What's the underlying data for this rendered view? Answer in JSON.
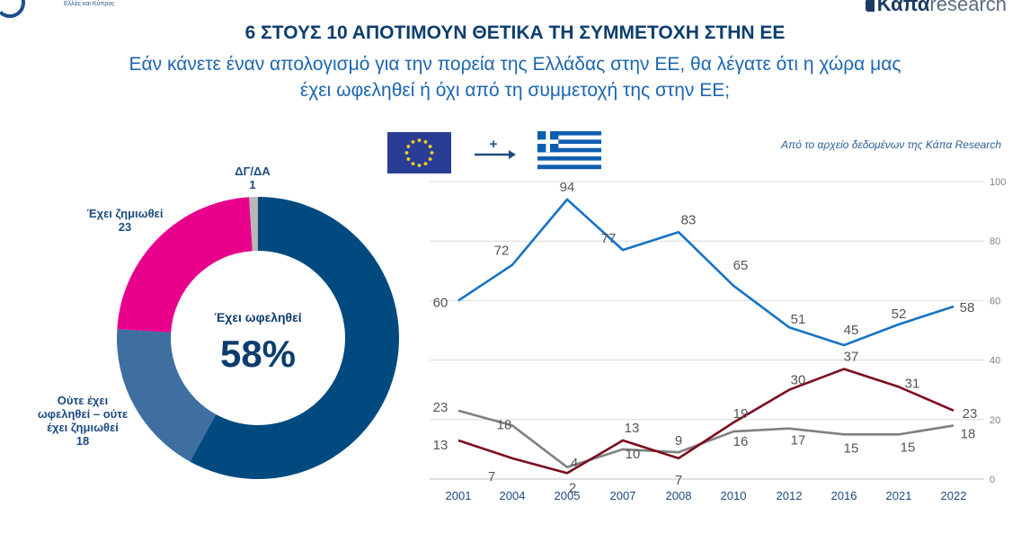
{
  "header": {
    "logo_left_tagline": "Ελλάς και Κύπρος",
    "logo_right_bold": "Κάπα",
    "logo_right_light": "research"
  },
  "title": "6 ΣΤΟΥΣ 10 ΑΠΟΤΙΜΟΥΝ ΘΕΤΙΚΑ ΤΗ ΣΥΜΜΕΤΟΧΗ ΣΤΗΝ ΕΕ",
  "subtitle_line1": "Εάν κάνετε έναν απολογισμό για την πορεία της Ελλάδας στην ΕΕ, θα λέγατε ότι η χώρα μας",
  "subtitle_line2": "έχει ωφεληθεί ή όχι από τη συμμετοχή της στην ΕΕ;",
  "source_note": "Από το αρχείο δεδομένων της Κάπα Research",
  "flags": {
    "plus_sign": "+"
  },
  "chart_data": [
    {
      "type": "pie",
      "center_label": "Έχει ωφεληθεί",
      "center_value": "58%",
      "slices": [
        {
          "label_lines": [
            "Έχει ωφεληθεί"
          ],
          "value": 58,
          "color": "#004a80",
          "show_label": false
        },
        {
          "label_lines": [
            "Ούτε έχει",
            "ωφεληθεί – ούτε",
            "έχει ζημιωθεί",
            "18"
          ],
          "value": 18,
          "color": "#3e6fa0",
          "show_label": true
        },
        {
          "label_lines": [
            "Έχει ζημιωθεί",
            "23"
          ],
          "value": 23,
          "color": "#e8008c",
          "show_label": true
        },
        {
          "label_lines": [
            "ΔΓ/ΔΑ",
            "1"
          ],
          "value": 1,
          "color": "#b8b8b8",
          "show_label": true
        }
      ]
    },
    {
      "type": "line",
      "categories": [
        "2001",
        "2004",
        "2005",
        "2007",
        "2008",
        "2010",
        "2012",
        "2016",
        "2021",
        "2022"
      ],
      "ylim": [
        0,
        100
      ],
      "yticks": [
        0,
        20,
        40,
        60,
        80,
        100
      ],
      "grid": true,
      "series": [
        {
          "color": "#1673c5",
          "values": [
            60,
            72,
            94,
            77,
            83,
            65,
            51,
            45,
            52,
            58
          ]
        },
        {
          "color": "#808080",
          "values": [
            23,
            18,
            4,
            10,
            9,
            16,
            17,
            15,
            15,
            18
          ]
        },
        {
          "color": "#7b0c1e",
          "values": [
            13,
            7,
            2,
            13,
            7,
            19,
            30,
            37,
            31,
            23
          ]
        }
      ]
    }
  ]
}
